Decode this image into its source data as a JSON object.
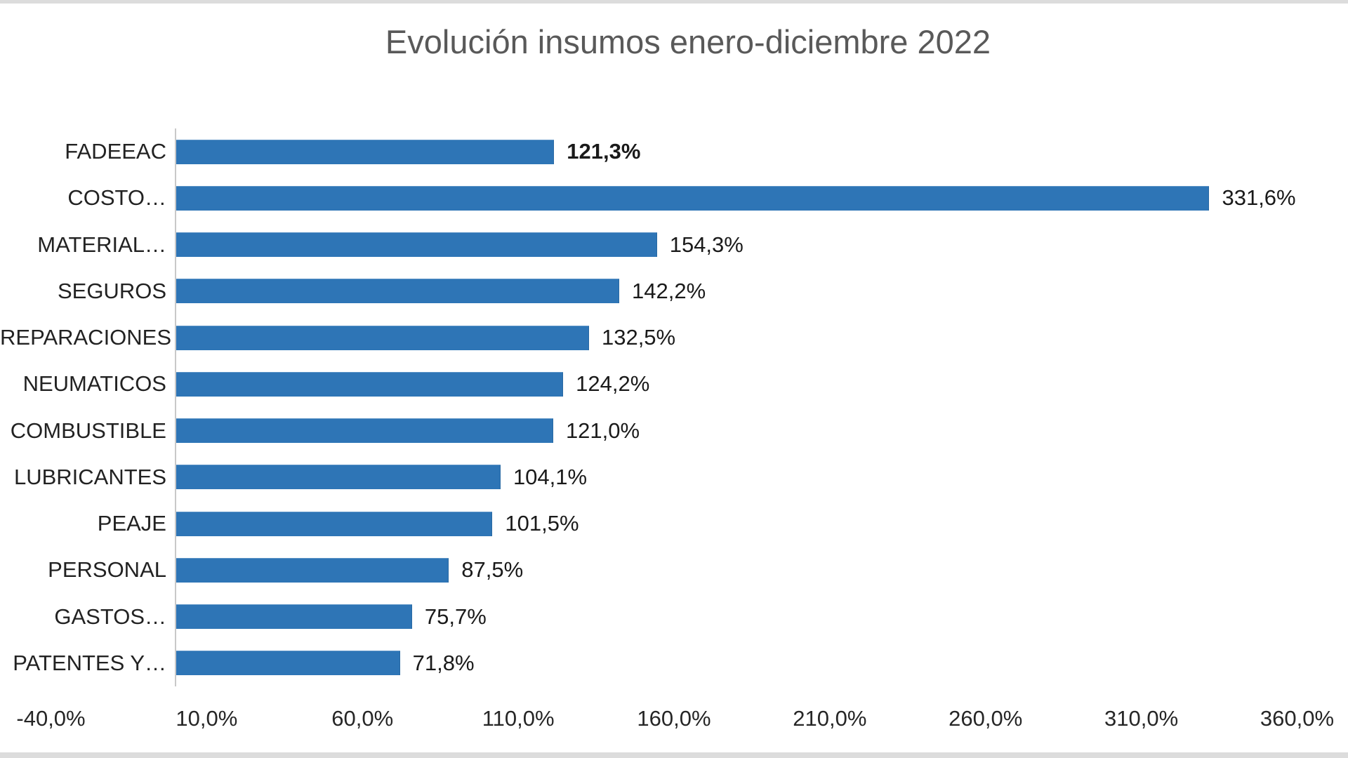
{
  "chart_data": {
    "type": "bar",
    "orientation": "horizontal",
    "title": "Evolución insumos enero-diciembre 2022",
    "categories": [
      "FADEEAC",
      "COSTO…",
      "MATERIAL…",
      "SEGUROS",
      "REPARACIONES",
      "NEUMATICOS",
      "COMBUSTIBLE",
      "LUBRICANTES",
      "PEAJE",
      "PERSONAL",
      "GASTOS…",
      "PATENTES Y…"
    ],
    "values": [
      121.3,
      331.6,
      154.3,
      142.2,
      132.5,
      124.2,
      121.0,
      104.1,
      101.5,
      87.5,
      75.7,
      71.8
    ],
    "value_labels": [
      "121,3%",
      "331,6%",
      "154,3%",
      "142,2%",
      "132,5%",
      "124,2%",
      "121,0%",
      "104,1%",
      "101,5%",
      "87,5%",
      "75,7%",
      "71,8%"
    ],
    "value_label_bold": [
      true,
      false,
      false,
      false,
      false,
      false,
      false,
      false,
      false,
      false,
      false,
      false
    ],
    "x_tick_labels": [
      "-40,0%",
      "10,0%",
      "60,0%",
      "110,0%",
      "160,0%",
      "210,0%",
      "260,0%",
      "310,0%",
      "360,0%"
    ],
    "x_tick_values": [
      -40,
      10,
      60,
      110,
      160,
      210,
      260,
      310,
      360
    ],
    "xlim": [
      -40,
      360
    ],
    "grid": false,
    "legend": false,
    "bar_color": "#2E75B6",
    "title_color": "#595959",
    "axis_line_color": "#C9C9C9",
    "label_color": "#1A1A1A"
  }
}
